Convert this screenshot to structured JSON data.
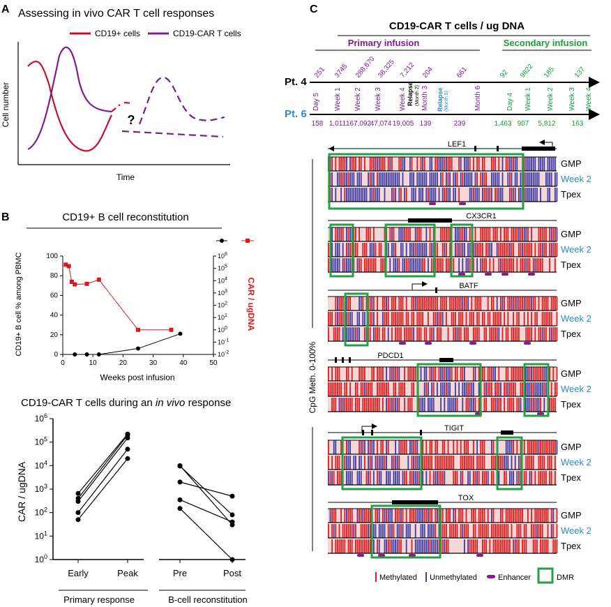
{
  "colors": {
    "red": "#d7191c",
    "purple": "#7a1f8c",
    "blue": "#2b8cc4",
    "green": "#1a9e3a",
    "meth": "#e31a1c",
    "unmeth": "#3d3da8",
    "box": "#22a043"
  },
  "panelA": {
    "letter": "A",
    "title": "Assessing in vivo CAR T cell responses",
    "legend_cd19": "CD19+ cells",
    "legend_car": "CD19-CAR T cells",
    "ylabel": "Cell number",
    "xlabel": "Time",
    "question": "?"
  },
  "panelB": {
    "letter": "B",
    "title": "CD19+ B cell reconstitution",
    "ylabel_left": "CD19+ B cell % among PBMC",
    "ylabel_right": "CAR / ugDNA",
    "xlabel": "Weeks post infusion",
    "bottom_title_pre": "CD19-CAR T cells during an ",
    "bottom_title_em": "in vivo",
    "bottom_title_post": " response",
    "bottom_ylabel": "CAR / ugDNA",
    "primary_label": "Primary response",
    "bcell_label": "B-cell reconstitution"
  },
  "panelC": {
    "letter": "C",
    "title": "CD19-CAR T cells  / ug DNA",
    "primary": "Primary infusion",
    "secondary": "Secondary infusion",
    "pt4": "Pt. 4",
    "pt6": "Pt. 6",
    "ylabel": "CpG Meth. 0-100%",
    "pt4_values": [
      "251",
      "3745",
      "288,670",
      "38,325",
      "7,212",
      "204",
      "661",
      "92",
      "9822",
      "185",
      "137"
    ],
    "pt6_values": [
      "158",
      "1,011",
      "167,092",
      "47,074",
      "19,005",
      "139",
      "239",
      "1,463",
      "907",
      "5,812",
      "163"
    ],
    "timepoints": [
      "Day 5",
      "Week 1",
      "Week 2",
      "Week 3",
      "Week 4",
      "Month 3",
      "Month 6",
      "Day 4",
      "Week 1",
      "Week 2",
      "Week 3",
      "Week 4"
    ],
    "relapse4": "Relapse",
    "relapse4_sub": "(Month 2)",
    "relapse6": "Relapse",
    "relapse6_sub": "(Month 5)",
    "rows": [
      "GMP",
      "Week 2",
      "Tpex"
    ],
    "genes": [
      "LEF1",
      "CX3CR1",
      "BATF",
      "PDCD1",
      "TIGIT",
      "TOX"
    ],
    "legend_meth": "Methylated",
    "legend_unmeth": "Unmethylated",
    "legend_enh": "Enhancer",
    "legend_dmr": "DMR"
  },
  "chart_data": [
    {
      "type": "line",
      "title": "Assessing in vivo CAR T cell responses",
      "xlabel": "Time",
      "ylabel": "Cell number",
      "series": [
        {
          "name": "CD19+ cells"
        },
        {
          "name": "CD19-CAR T cells"
        }
      ]
    },
    {
      "type": "line",
      "title": "CD19+ B cell reconstitution",
      "xlabel": "Weeks post infusion",
      "ylabel": "CD19+ B cell % among PBMC",
      "ylabel_right": "CAR / ugDNA",
      "xlim": [
        0,
        50
      ],
      "ylim": [
        0,
        100
      ],
      "ylim_right": [
        0.01,
        1000000
      ],
      "xticks": [
        "0",
        "10",
        "20",
        "30",
        "40",
        "50"
      ],
      "yticks": [
        "0",
        "20",
        "40",
        "60",
        "80",
        "100"
      ],
      "yticks_right": [
        "10-2",
        "10-1",
        "100",
        "101",
        "102",
        "103",
        "104",
        "105",
        "106"
      ],
      "series": [
        {
          "name": "CD19+ B cell %",
          "x": [
            4,
            8,
            12,
            25,
            39
          ],
          "y": [
            0,
            0,
            0,
            6,
            21
          ]
        },
        {
          "name": "CAR / ugDNA",
          "x": [
            1,
            2,
            3,
            4,
            8,
            12,
            25,
            36
          ],
          "y": [
            200000,
            150000,
            8000,
            5000,
            5500,
            12000,
            1,
            1
          ]
        }
      ]
    },
    {
      "type": "scatter",
      "title": "CD19-CAR T cells during an in vivo response",
      "ylabel": "CAR / ugDNA",
      "categories": [
        "Early",
        "Peak",
        "Pre",
        "Post"
      ],
      "yticks": [
        "100",
        "101",
        "102",
        "103",
        "104",
        "105",
        "106"
      ],
      "ylim": [
        1,
        1000000
      ],
      "series": [
        {
          "name": "Primary response",
          "pairs": [
            [
              50,
              20000
            ],
            [
              100,
              50000
            ],
            [
              300,
              150000
            ],
            [
              400,
              200000
            ],
            [
              650,
              220000
            ]
          ]
        },
        {
          "name": "B-cell reconstitution",
          "pairs": [
            [
              10000,
              30
            ],
            [
              9500,
              80
            ],
            [
              2000,
              500
            ],
            [
              350,
              40
            ],
            [
              150,
              1
            ]
          ]
        }
      ]
    }
  ]
}
